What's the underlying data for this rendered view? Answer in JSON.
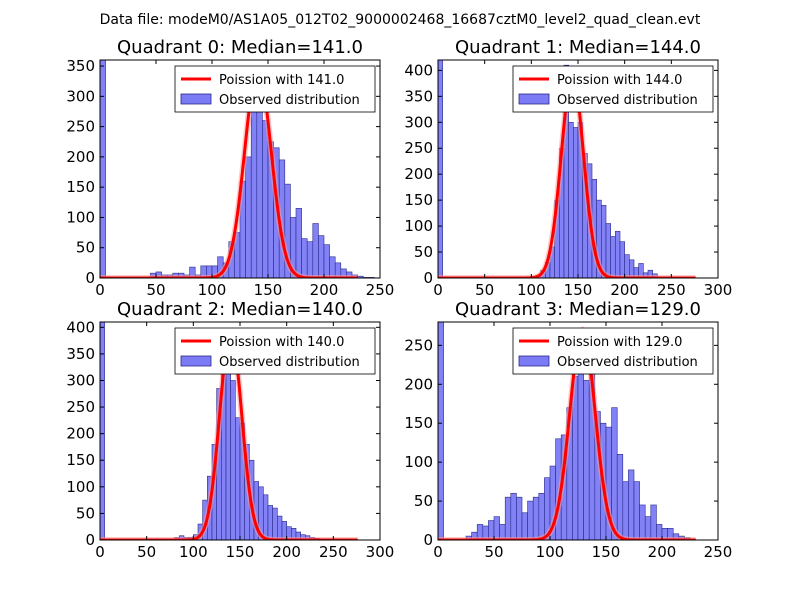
{
  "figure": {
    "suptitle": "Data file: modeM0/AS1A05_012T02_9000002468_16687cztM0_level2_quad_clean.evt"
  },
  "colors": {
    "bar_fill": "#7b7bf5",
    "bar_stroke": "#2a2a8a",
    "poisson_line": "#ff0000",
    "poisson_line_faint": "#ff9a9a"
  },
  "chart_data": [
    {
      "type": "bar",
      "title": "Quadrant 0: Median=141.0",
      "median": 141.0,
      "xlim": [
        0,
        250
      ],
      "ylim": [
        0,
        360
      ],
      "xticks": [
        0,
        50,
        100,
        150,
        200,
        250
      ],
      "yticks": [
        0,
        50,
        100,
        150,
        200,
        250,
        300,
        350
      ],
      "legend": {
        "placement": "top-right",
        "line_label": "Poission with 141.0",
        "bar_label": "Observed distribution"
      },
      "bin_width": 5,
      "bins": [
        [
          0,
          360
        ],
        [
          5,
          0
        ],
        [
          10,
          0
        ],
        [
          15,
          0
        ],
        [
          20,
          0
        ],
        [
          25,
          0
        ],
        [
          30,
          0
        ],
        [
          35,
          0
        ],
        [
          40,
          0
        ],
        [
          45,
          8
        ],
        [
          50,
          10
        ],
        [
          55,
          5
        ],
        [
          60,
          5
        ],
        [
          65,
          8
        ],
        [
          70,
          8
        ],
        [
          75,
          5
        ],
        [
          80,
          18
        ],
        [
          85,
          5
        ],
        [
          90,
          20
        ],
        [
          95,
          20
        ],
        [
          100,
          20
        ],
        [
          105,
          35
        ],
        [
          110,
          25
        ],
        [
          115,
          60
        ],
        [
          120,
          75
        ],
        [
          125,
          160
        ],
        [
          130,
          200
        ],
        [
          135,
          345
        ],
        [
          140,
          300
        ],
        [
          145,
          260
        ],
        [
          150,
          225
        ],
        [
          155,
          215
        ],
        [
          160,
          195
        ],
        [
          165,
          155
        ],
        [
          170,
          100
        ],
        [
          175,
          115
        ],
        [
          180,
          65
        ],
        [
          185,
          60
        ],
        [
          190,
          90
        ],
        [
          195,
          70
        ],
        [
          200,
          55
        ],
        [
          205,
          35
        ],
        [
          210,
          25
        ],
        [
          215,
          15
        ],
        [
          220,
          10
        ],
        [
          225,
          5
        ],
        [
          230,
          3
        ],
        [
          235,
          1
        ],
        [
          240,
          1
        ],
        [
          245,
          0
        ]
      ],
      "poisson_peak": 345
    },
    {
      "type": "bar",
      "title": "Quadrant 1: Median=144.0",
      "median": 144.0,
      "xlim": [
        0,
        300
      ],
      "ylim": [
        0,
        420
      ],
      "xticks": [
        0,
        50,
        100,
        150,
        200,
        250,
        300
      ],
      "yticks": [
        0,
        50,
        100,
        150,
        200,
        250,
        300,
        350,
        400
      ],
      "legend": {
        "placement": "top-right",
        "line_label": "Poission with 144.0",
        "bar_label": "Observed distribution"
      },
      "bin_width": 5,
      "bins": [
        [
          0,
          420
        ],
        [
          5,
          0
        ],
        [
          10,
          0
        ],
        [
          15,
          0
        ],
        [
          20,
          0
        ],
        [
          25,
          0
        ],
        [
          30,
          0
        ],
        [
          35,
          0
        ],
        [
          40,
          0
        ],
        [
          45,
          0
        ],
        [
          50,
          0
        ],
        [
          55,
          0
        ],
        [
          60,
          0
        ],
        [
          65,
          0
        ],
        [
          70,
          0
        ],
        [
          75,
          0
        ],
        [
          80,
          0
        ],
        [
          85,
          0
        ],
        [
          90,
          0
        ],
        [
          95,
          0
        ],
        [
          100,
          3
        ],
        [
          105,
          5
        ],
        [
          110,
          15
        ],
        [
          115,
          30
        ],
        [
          120,
          60
        ],
        [
          125,
          150
        ],
        [
          130,
          250
        ],
        [
          135,
          410
        ],
        [
          140,
          300
        ],
        [
          145,
          290
        ],
        [
          150,
          300
        ],
        [
          155,
          240
        ],
        [
          160,
          220
        ],
        [
          165,
          190
        ],
        [
          170,
          150
        ],
        [
          175,
          140
        ],
        [
          180,
          105
        ],
        [
          185,
          80
        ],
        [
          190,
          90
        ],
        [
          195,
          70
        ],
        [
          200,
          45
        ],
        [
          205,
          35
        ],
        [
          210,
          20
        ],
        [
          215,
          28
        ],
        [
          220,
          10
        ],
        [
          225,
          15
        ],
        [
          230,
          8
        ],
        [
          235,
          2
        ],
        [
          240,
          0
        ],
        [
          245,
          0
        ],
        [
          250,
          0
        ],
        [
          255,
          0
        ],
        [
          260,
          0
        ],
        [
          265,
          0
        ],
        [
          270,
          0
        ]
      ],
      "poisson_peak": 390
    },
    {
      "type": "bar",
      "title": "Quadrant 2: Median=140.0",
      "median": 140.0,
      "xlim": [
        0,
        300
      ],
      "ylim": [
        0,
        410
      ],
      "xticks": [
        0,
        50,
        100,
        150,
        200,
        250,
        300
      ],
      "yticks": [
        0,
        50,
        100,
        150,
        200,
        250,
        300,
        350,
        400
      ],
      "legend": {
        "placement": "top-right",
        "line_label": "Poission with 140.0",
        "bar_label": "Observed distribution"
      },
      "bin_width": 5,
      "bins": [
        [
          0,
          410
        ],
        [
          5,
          0
        ],
        [
          10,
          0
        ],
        [
          15,
          0
        ],
        [
          20,
          0
        ],
        [
          25,
          0
        ],
        [
          30,
          0
        ],
        [
          35,
          0
        ],
        [
          40,
          0
        ],
        [
          45,
          0
        ],
        [
          50,
          0
        ],
        [
          55,
          0
        ],
        [
          60,
          0
        ],
        [
          65,
          0
        ],
        [
          70,
          0
        ],
        [
          75,
          0
        ],
        [
          80,
          5
        ],
        [
          85,
          8
        ],
        [
          90,
          5
        ],
        [
          95,
          5
        ],
        [
          100,
          10
        ],
        [
          105,
          30
        ],
        [
          110,
          75
        ],
        [
          115,
          120
        ],
        [
          120,
          180
        ],
        [
          125,
          285
        ],
        [
          130,
          350
        ],
        [
          135,
          390
        ],
        [
          140,
          300
        ],
        [
          145,
          230
        ],
        [
          150,
          220
        ],
        [
          155,
          180
        ],
        [
          160,
          150
        ],
        [
          165,
          110
        ],
        [
          170,
          100
        ],
        [
          175,
          85
        ],
        [
          180,
          65
        ],
        [
          185,
          60
        ],
        [
          190,
          45
        ],
        [
          195,
          35
        ],
        [
          200,
          25
        ],
        [
          205,
          22
        ],
        [
          210,
          15
        ],
        [
          215,
          10
        ],
        [
          220,
          8
        ],
        [
          225,
          5
        ],
        [
          230,
          3
        ],
        [
          235,
          2
        ],
        [
          240,
          1
        ],
        [
          245,
          1
        ],
        [
          250,
          0
        ],
        [
          255,
          0
        ]
      ],
      "poisson_peak": 390
    },
    {
      "type": "bar",
      "title": "Quadrant 3: Median=129.0",
      "median": 129.0,
      "xlim": [
        0,
        250
      ],
      "ylim": [
        0,
        280
      ],
      "xticks": [
        0,
        50,
        100,
        150,
        200,
        250
      ],
      "yticks": [
        0,
        50,
        100,
        150,
        200,
        250
      ],
      "legend": {
        "placement": "top-right",
        "line_label": "Poission with 129.0",
        "bar_label": "Observed distribution"
      },
      "bin_width": 5,
      "bins": [
        [
          0,
          280
        ],
        [
          5,
          0
        ],
        [
          10,
          0
        ],
        [
          15,
          0
        ],
        [
          20,
          0
        ],
        [
          25,
          5
        ],
        [
          30,
          10
        ],
        [
          35,
          20
        ],
        [
          40,
          18
        ],
        [
          45,
          25
        ],
        [
          50,
          30
        ],
        [
          55,
          20
        ],
        [
          60,
          55
        ],
        [
          65,
          60
        ],
        [
          70,
          55
        ],
        [
          75,
          35
        ],
        [
          80,
          50
        ],
        [
          85,
          55
        ],
        [
          90,
          60
        ],
        [
          95,
          80
        ],
        [
          100,
          95
        ],
        [
          105,
          130
        ],
        [
          110,
          135
        ],
        [
          115,
          170
        ],
        [
          120,
          210
        ],
        [
          125,
          240
        ],
        [
          130,
          205
        ],
        [
          135,
          215
        ],
        [
          140,
          165
        ],
        [
          145,
          150
        ],
        [
          150,
          145
        ],
        [
          155,
          170
        ],
        [
          160,
          110
        ],
        [
          165,
          75
        ],
        [
          170,
          90
        ],
        [
          175,
          75
        ],
        [
          180,
          45
        ],
        [
          185,
          30
        ],
        [
          190,
          45
        ],
        [
          195,
          20
        ],
        [
          200,
          15
        ],
        [
          205,
          15
        ],
        [
          210,
          8
        ],
        [
          215,
          5
        ],
        [
          220,
          3
        ],
        [
          225,
          1
        ],
        [
          230,
          0
        ]
      ],
      "poisson_peak": 270
    }
  ]
}
